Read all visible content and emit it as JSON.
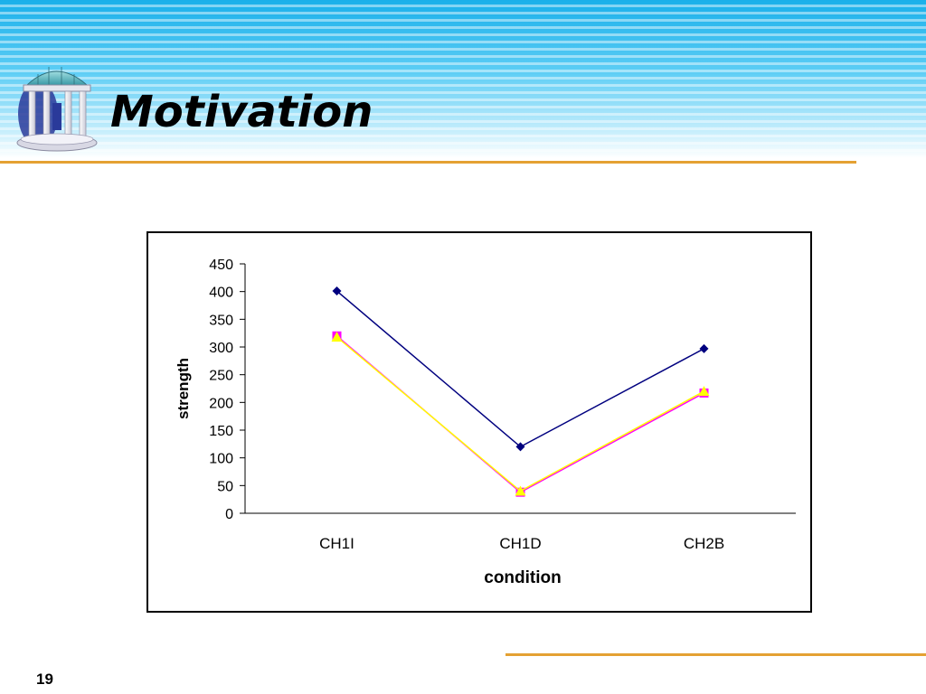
{
  "slide": {
    "title": "Motivation",
    "page_number": "19",
    "logo_icon": "gazebo-logo-icon",
    "accent_color": "#e4a133"
  },
  "chart_data": {
    "type": "line",
    "categories": [
      "CH1I",
      "CH1D",
      "CH2B"
    ],
    "series": [
      {
        "values": [
          401,
          120,
          297
        ],
        "color": "#00007f",
        "marker": "diamond"
      },
      {
        "values": [
          320,
          38,
          217
        ],
        "color": "#ff00ff",
        "marker": "square"
      },
      {
        "values": [
          318,
          40,
          220
        ],
        "color": "#ffff00",
        "marker": "triangle"
      }
    ],
    "xlabel": "condition",
    "ylabel": "strength",
    "ylim": [
      0,
      450
    ],
    "yticks": [
      0,
      50,
      100,
      150,
      200,
      250,
      300,
      350,
      400,
      450
    ],
    "grid": false,
    "legend": "none"
  }
}
